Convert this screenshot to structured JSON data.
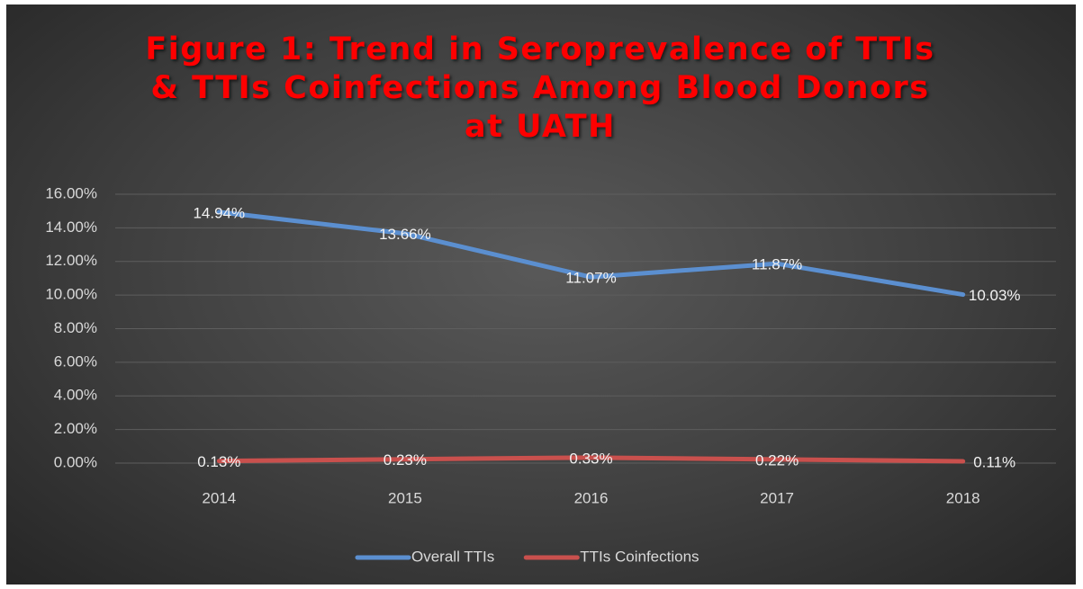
{
  "chart_data": {
    "type": "line",
    "title": "Figure 1: Trend in Seroprevalence of TTIs & TTIs Coinfections Among Blood Donors at UATH",
    "categories": [
      "2014",
      "2015",
      "2016",
      "2017",
      "2018"
    ],
    "series": [
      {
        "name": "Overall TTIs",
        "color": "#5b8fd0",
        "values": [
          14.94,
          13.66,
          11.07,
          11.87,
          10.03
        ],
        "value_labels": [
          "14.94%",
          "13.66%",
          "11.07%",
          "11.87%",
          "10.03%"
        ]
      },
      {
        "name": "TTIs Coinfections",
        "color": "#c9504d",
        "values": [
          0.13,
          0.23,
          0.33,
          0.22,
          0.11
        ],
        "value_labels": [
          "0.13%",
          "0.23%",
          "0.33%",
          "0.22%",
          "0.11%"
        ]
      }
    ],
    "ylim": [
      0,
      16
    ],
    "yticks": [
      {
        "value": 0,
        "label": "0.00%"
      },
      {
        "value": 2,
        "label": "2.00%"
      },
      {
        "value": 4,
        "label": "4.00%"
      },
      {
        "value": 6,
        "label": "6.00%"
      },
      {
        "value": 8,
        "label": "8.00%"
      },
      {
        "value": 10,
        "label": "10.00%"
      },
      {
        "value": 12,
        "label": "12.00%"
      },
      {
        "value": 14,
        "label": "14.00%"
      },
      {
        "value": 16,
        "label": "16.00%"
      }
    ],
    "grid": true,
    "legend": "bottom"
  }
}
